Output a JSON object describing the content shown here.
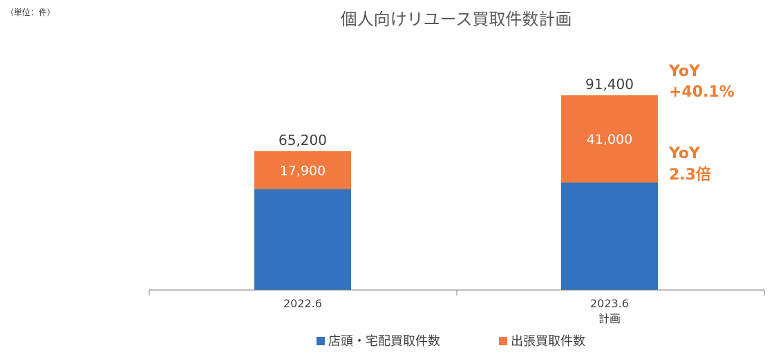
{
  "unit_label": "（単位：件）",
  "chart_data": {
    "type": "bar",
    "stacked": true,
    "title": "個人向けリユース買取件数計画",
    "categories": [
      "2022.6",
      "2023.6"
    ],
    "category_sublabels": [
      "",
      "計画"
    ],
    "series": [
      {
        "name": "店頭・宅配買取件数",
        "color": "#3272BE",
        "values": [
          47300,
          50400
        ],
        "labels": [
          "",
          ""
        ]
      },
      {
        "name": "出張買取件数",
        "color": "#F27A3F",
        "values": [
          17900,
          41000
        ],
        "labels": [
          "17,900",
          "41,000"
        ]
      }
    ],
    "totals": [
      65200,
      91400
    ],
    "total_labels": [
      "65,200",
      "91,400"
    ],
    "annotations": [
      {
        "line1": "YoY",
        "line2": "+40.1%",
        "color": "#ED7D31"
      },
      {
        "line1": "YoY",
        "line2": "2.3倍",
        "color": "#ED7D31"
      }
    ],
    "ylim": [
      0,
      91400
    ],
    "grid": false,
    "legend_position": "bottom"
  }
}
